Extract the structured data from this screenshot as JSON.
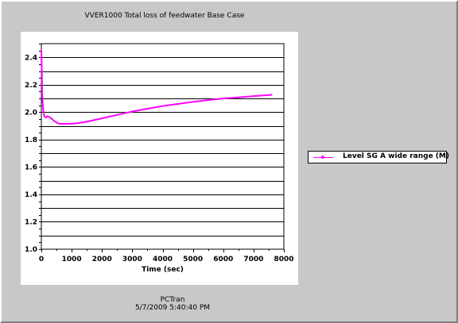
{
  "chart_data": {
    "type": "line",
    "title": "VVER1000 Total loss of feedwater Base Case",
    "xlabel": "Time (sec)",
    "ylabel": "",
    "xlim": [
      0,
      8000
    ],
    "ylim": [
      1.0,
      2.5
    ],
    "xticks": [
      0,
      1000,
      2000,
      3000,
      4000,
      5000,
      6000,
      7000,
      8000
    ],
    "xtick_labels": [
      "0",
      "1000",
      "2000",
      "3000",
      "4000",
      "5000",
      "6000",
      "7000",
      "8000"
    ],
    "yticks": [
      1.0,
      1.2,
      1.4,
      1.6,
      1.8,
      2.0,
      2.2,
      2.4
    ],
    "ytick_labels": [
      "1.0",
      "1.2",
      "1.4",
      "1.6",
      "1.8",
      "2.0",
      "2.2",
      "2.4"
    ],
    "grid": "horizontal",
    "legend_position": "right",
    "series": [
      {
        "name": "Level SG A wide range (M)",
        "color": "#ff00ff",
        "x": [
          0,
          15,
          30,
          60,
          100,
          150,
          200,
          300,
          400,
          500,
          600,
          800,
          1000,
          1200,
          1500,
          2000,
          2500,
          3000,
          3500,
          4000,
          4500,
          5000,
          5500,
          6000,
          6500,
          7000,
          7500,
          7600
        ],
        "y": [
          2.45,
          2.3,
          2.12,
          2.02,
          1.97,
          1.96,
          1.97,
          1.96,
          1.94,
          1.925,
          1.915,
          1.915,
          1.915,
          1.92,
          1.93,
          1.955,
          1.98,
          2.005,
          2.025,
          2.045,
          2.06,
          2.075,
          2.088,
          2.1,
          2.108,
          2.117,
          2.125,
          2.127
        ]
      }
    ]
  },
  "footer": {
    "app": "PCTran",
    "datetime": "5/7/2009 5:40:40 PM"
  }
}
